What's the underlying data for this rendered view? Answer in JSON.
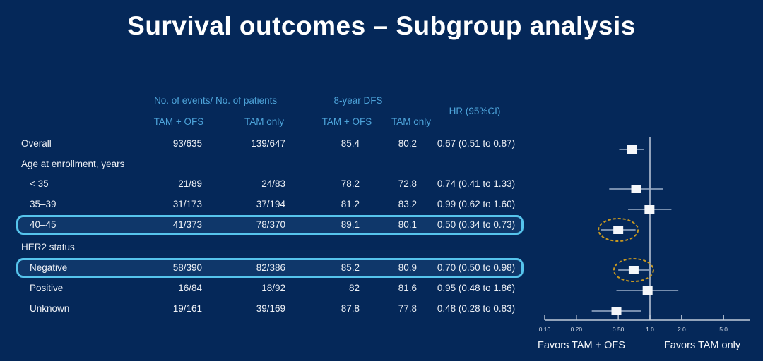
{
  "slide": {
    "title": "Survival outcomes – Subgroup analysis",
    "colors": {
      "background": "#052859",
      "header_blue": "#4da3d9",
      "highlight_border": "#56c4ec",
      "ellipse_gold": "#c9991f",
      "body_text": "#eef1f6",
      "marker_fill": "#f5f7fa"
    }
  },
  "table": {
    "header": {
      "events_patients": "No. of events/ No. of patients",
      "dfs": "8-year DFS",
      "hr": "HR (95%CI)",
      "sub": [
        "TAM + OFS",
        "TAM only",
        "TAM + OFS",
        "TAM only"
      ]
    },
    "rows": [
      {
        "type": "data",
        "label": "Overall",
        "indent": false,
        "highlight": false,
        "events_tam_ofs": "93/635",
        "events_tam_only": "139/647",
        "dfs_tam_ofs": "85.4",
        "dfs_tam_only": "80.2",
        "hr_ci": "0.67 (0.51 to 0.87)"
      },
      {
        "type": "section",
        "label": "Age at enrollment, years"
      },
      {
        "type": "data",
        "label": "< 35",
        "indent": true,
        "highlight": false,
        "events_tam_ofs": "21/89",
        "events_tam_only": "24/83",
        "dfs_tam_ofs": "78.2",
        "dfs_tam_only": "72.8",
        "hr_ci": "0.74 (0.41 to 1.33)"
      },
      {
        "type": "data",
        "label": "35–39",
        "indent": true,
        "highlight": false,
        "events_tam_ofs": "31/173",
        "events_tam_only": "37/194",
        "dfs_tam_ofs": "81.2",
        "dfs_tam_only": "83.2",
        "hr_ci": "0.99 (0.62 to 1.60)"
      },
      {
        "type": "data",
        "label": "40–45",
        "indent": true,
        "highlight": true,
        "events_tam_ofs": "41/373",
        "events_tam_only": "78/370",
        "dfs_tam_ofs": "89.1",
        "dfs_tam_only": "80.1",
        "hr_ci": "0.50 (0.34 to 0.73)"
      },
      {
        "type": "section",
        "label": "HER2 status"
      },
      {
        "type": "data",
        "label": "Negative",
        "indent": true,
        "highlight": true,
        "events_tam_ofs": "58/390",
        "events_tam_only": "82/386",
        "dfs_tam_ofs": "85.2",
        "dfs_tam_only": "80.9",
        "hr_ci": "0.70 (0.50 to 0.98)"
      },
      {
        "type": "data",
        "label": "Positive",
        "indent": true,
        "highlight": false,
        "events_tam_ofs": "16/84",
        "events_tam_only": "18/92",
        "dfs_tam_ofs": "82",
        "dfs_tam_only": "81.6",
        "hr_ci": "0.95 (0.48 to 1.86)"
      },
      {
        "type": "data",
        "label": "Unknown",
        "indent": true,
        "highlight": false,
        "events_tam_ofs": "19/161",
        "events_tam_only": "39/169",
        "dfs_tam_ofs": "87.8",
        "dfs_tam_only": "77.8",
        "hr_ci": "0.48 (0.28 to 0.83)"
      }
    ]
  },
  "chart_data": {
    "type": "scatter",
    "subtype": "forest-plot",
    "x_scale": "log",
    "x_ticks": [
      "0.10",
      "0.20",
      "0.50",
      "1.0",
      "2.0",
      "5.0"
    ],
    "xlim": [
      0.1,
      5.0
    ],
    "reference_line": 1.0,
    "grid": false,
    "xlabel_left": "Favors TAM + OFS",
    "xlabel_right": "Favors TAM only",
    "series": [
      {
        "name": "Overall",
        "hr": 0.67,
        "ci_low": 0.51,
        "ci_high": 0.87,
        "circled": false
      },
      {
        "name": "< 35",
        "hr": 0.74,
        "ci_low": 0.41,
        "ci_high": 1.33,
        "circled": false
      },
      {
        "name": "35–39",
        "hr": 0.99,
        "ci_low": 0.62,
        "ci_high": 1.6,
        "circled": false
      },
      {
        "name": "40–45",
        "hr": 0.5,
        "ci_low": 0.34,
        "ci_high": 0.73,
        "circled": true
      },
      {
        "name": "Negative",
        "hr": 0.7,
        "ci_low": 0.5,
        "ci_high": 0.98,
        "circled": true
      },
      {
        "name": "Positive",
        "hr": 0.95,
        "ci_low": 0.48,
        "ci_high": 1.86,
        "circled": false
      },
      {
        "name": "Unknown",
        "hr": 0.48,
        "ci_low": 0.28,
        "ci_high": 0.83,
        "circled": false
      }
    ]
  }
}
